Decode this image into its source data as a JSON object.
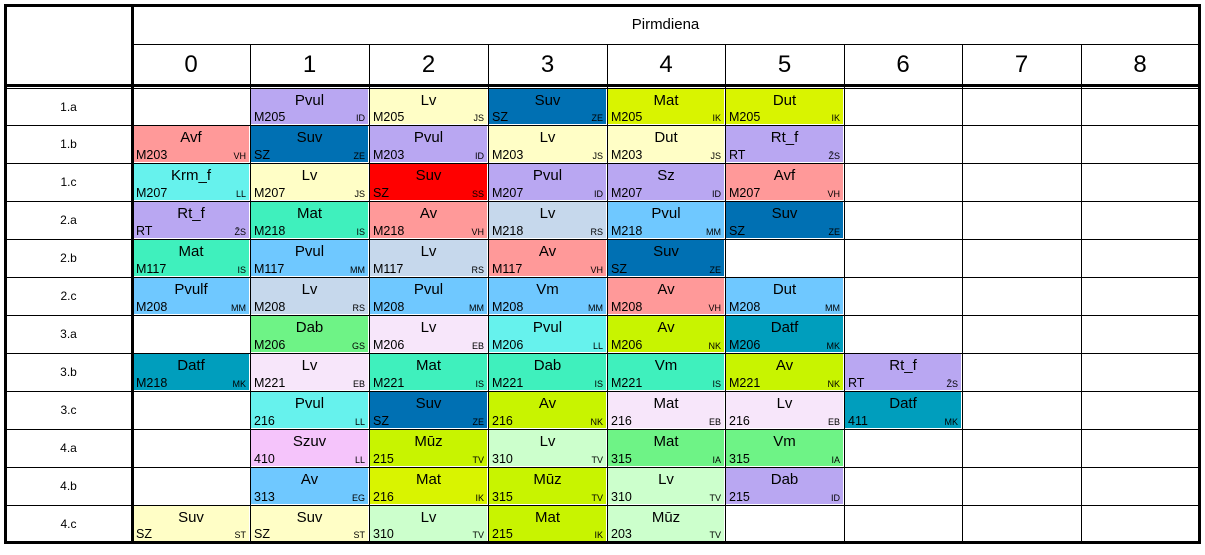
{
  "day": "Pirmdiena",
  "periods": [
    "0",
    "1",
    "2",
    "3",
    "4",
    "5",
    "6",
    "7",
    "8"
  ],
  "classes": [
    "1.a",
    "1.b",
    "1.c",
    "2.a",
    "2.b",
    "2.c",
    "3.a",
    "3.b",
    "3.c",
    "4.a",
    "4.b",
    "4.c"
  ],
  "colors": {
    "Pvul": "#b9a7f2",
    "Lv": "#fffec6",
    "Suv": "#0070b3",
    "Mat": "#d9f400",
    "Dut": "#d9f400",
    "Avf": "#ff9999",
    "Krm_f": "#66f2ed",
    "Sz": "#b9a7f2",
    "Rt_f": "#b9a7f2",
    "Mat2": "#3ff0bd",
    "Av": "#ff9999",
    "Lv2": "#c6d8ec",
    "Pvulf": "#6fc8ff",
    "Vm": "#6fc8ff",
    "Dab": "#6ef386",
    "Lv3": "#f7e6fa",
    "Datf": "#009ebd",
    "Szuv": "#f5c4fb",
    "Muz": "#c8f400",
    "Lv4": "#ccffcc",
    "Red": "#ff0000"
  },
  "lessons": [
    {
      "row": 0,
      "col": 1,
      "room": "M205",
      "subject": "Pvul",
      "teacher": "ID",
      "color": "#b9a7f2"
    },
    {
      "row": 0,
      "col": 2,
      "room": "M205",
      "subject": "Lv",
      "teacher": "JS",
      "color": "#fffec6"
    },
    {
      "row": 0,
      "col": 3,
      "room": "SZ",
      "subject": "Suv",
      "teacher": "ZE",
      "color": "#0070b3"
    },
    {
      "row": 0,
      "col": 4,
      "room": "M205",
      "subject": "Mat",
      "teacher": "IK",
      "color": "#d9f400"
    },
    {
      "row": 0,
      "col": 5,
      "room": "M205",
      "subject": "Dut",
      "teacher": "IK",
      "color": "#d9f400"
    },
    {
      "row": 1,
      "col": 0,
      "room": "M203",
      "subject": "Avf",
      "teacher": "VH",
      "color": "#ff9999"
    },
    {
      "row": 1,
      "col": 1,
      "room": "SZ",
      "subject": "Suv",
      "teacher": "ZE",
      "color": "#0070b3"
    },
    {
      "row": 1,
      "col": 2,
      "room": "M203",
      "subject": "Pvul",
      "teacher": "ID",
      "color": "#b9a7f2"
    },
    {
      "row": 1,
      "col": 3,
      "room": "M203",
      "subject": "Lv",
      "teacher": "JS",
      "color": "#fffec6"
    },
    {
      "row": 1,
      "col": 4,
      "room": "M203",
      "subject": "Dut",
      "teacher": "JS",
      "color": "#fffec6"
    },
    {
      "row": 1,
      "col": 5,
      "room": "RT",
      "subject": "Rt_f",
      "teacher": "ŽS",
      "color": "#b9a7f2"
    },
    {
      "row": 2,
      "col": 0,
      "room": "M207",
      "subject": "Krm_f",
      "teacher": "LL",
      "color": "#66f2ed"
    },
    {
      "row": 2,
      "col": 1,
      "room": "M207",
      "subject": "Lv",
      "teacher": "JS",
      "color": "#fffec6"
    },
    {
      "row": 2,
      "col": 2,
      "room": "SZ",
      "subject": "Suv",
      "teacher": "SS",
      "color": "#ff0000"
    },
    {
      "row": 2,
      "col": 3,
      "room": "M207",
      "subject": "Pvul",
      "teacher": "ID",
      "color": "#b9a7f2"
    },
    {
      "row": 2,
      "col": 4,
      "room": "M207",
      "subject": "Sz",
      "teacher": "ID",
      "color": "#b9a7f2"
    },
    {
      "row": 2,
      "col": 5,
      "room": "M207",
      "subject": "Avf",
      "teacher": "VH",
      "color": "#ff9999"
    },
    {
      "row": 3,
      "col": 0,
      "room": "RT",
      "subject": "Rt_f",
      "teacher": "ŽS",
      "color": "#b9a7f2"
    },
    {
      "row": 3,
      "col": 1,
      "room": "M218",
      "subject": "Mat",
      "teacher": "IS",
      "color": "#3ff0bd"
    },
    {
      "row": 3,
      "col": 2,
      "room": "M218",
      "subject": "Av",
      "teacher": "VH",
      "color": "#ff9999"
    },
    {
      "row": 3,
      "col": 3,
      "room": "M218",
      "subject": "Lv",
      "teacher": "RS",
      "color": "#c6d8ec"
    },
    {
      "row": 3,
      "col": 4,
      "room": "M218",
      "subject": "Pvul",
      "teacher": "MM",
      "color": "#6fc8ff"
    },
    {
      "row": 3,
      "col": 5,
      "room": "SZ",
      "subject": "Suv",
      "teacher": "ZE",
      "color": "#0070b3"
    },
    {
      "row": 4,
      "col": 0,
      "room": "M117",
      "subject": "Mat",
      "teacher": "IS",
      "color": "#3ff0bd"
    },
    {
      "row": 4,
      "col": 1,
      "room": "M117",
      "subject": "Pvul",
      "teacher": "MM",
      "color": "#6fc8ff"
    },
    {
      "row": 4,
      "col": 2,
      "room": "M117",
      "subject": "Lv",
      "teacher": "RS",
      "color": "#c6d8ec"
    },
    {
      "row": 4,
      "col": 3,
      "room": "M117",
      "subject": "Av",
      "teacher": "VH",
      "color": "#ff9999"
    },
    {
      "row": 4,
      "col": 4,
      "room": "SZ",
      "subject": "Suv",
      "teacher": "ZE",
      "color": "#0070b3"
    },
    {
      "row": 5,
      "col": 0,
      "room": "M208",
      "subject": "Pvulf",
      "teacher": "MM",
      "color": "#6fc8ff"
    },
    {
      "row": 5,
      "col": 1,
      "room": "M208",
      "subject": "Lv",
      "teacher": "RS",
      "color": "#c6d8ec"
    },
    {
      "row": 5,
      "col": 2,
      "room": "M208",
      "subject": "Pvul",
      "teacher": "MM",
      "color": "#6fc8ff"
    },
    {
      "row": 5,
      "col": 3,
      "room": "M208",
      "subject": "Vm",
      "teacher": "MM",
      "color": "#6fc8ff"
    },
    {
      "row": 5,
      "col": 4,
      "room": "M208",
      "subject": "Av",
      "teacher": "VH",
      "color": "#ff9999"
    },
    {
      "row": 5,
      "col": 5,
      "room": "M208",
      "subject": "Dut",
      "teacher": "MM",
      "color": "#6fc8ff"
    },
    {
      "row": 6,
      "col": 1,
      "room": "M206",
      "subject": "Dab",
      "teacher": "GS",
      "color": "#6ef386"
    },
    {
      "row": 6,
      "col": 2,
      "room": "M206",
      "subject": "Lv",
      "teacher": "EB",
      "color": "#f7e6fa"
    },
    {
      "row": 6,
      "col": 3,
      "room": "M206",
      "subject": "Pvul",
      "teacher": "LL",
      "color": "#66f2ed"
    },
    {
      "row": 6,
      "col": 4,
      "room": "M206",
      "subject": "Av",
      "teacher": "NK",
      "color": "#c8f400"
    },
    {
      "row": 6,
      "col": 5,
      "room": "M206",
      "subject": "Datf",
      "teacher": "MK",
      "color": "#009ebd"
    },
    {
      "row": 7,
      "col": 0,
      "room": "M218",
      "subject": "Datf",
      "teacher": "MK",
      "color": "#009ebd"
    },
    {
      "row": 7,
      "col": 1,
      "room": "M221",
      "subject": "Lv",
      "teacher": "EB",
      "color": "#f7e6fa"
    },
    {
      "row": 7,
      "col": 2,
      "room": "M221",
      "subject": "Mat",
      "teacher": "IS",
      "color": "#3ff0bd"
    },
    {
      "row": 7,
      "col": 3,
      "room": "M221",
      "subject": "Dab",
      "teacher": "IS",
      "color": "#3ff0bd"
    },
    {
      "row": 7,
      "col": 4,
      "room": "M221",
      "subject": "Vm",
      "teacher": "IS",
      "color": "#3ff0bd"
    },
    {
      "row": 7,
      "col": 5,
      "room": "M221",
      "subject": "Av",
      "teacher": "NK",
      "color": "#c8f400"
    },
    {
      "row": 7,
      "col": 6,
      "room": "RT",
      "subject": "Rt_f",
      "teacher": "ŽS",
      "color": "#b9a7f2"
    },
    {
      "row": 8,
      "col": 1,
      "room": "216",
      "subject": "Pvul",
      "teacher": "LL",
      "color": "#66f2ed"
    },
    {
      "row": 8,
      "col": 2,
      "room": "SZ",
      "subject": "Suv",
      "teacher": "ZE",
      "color": "#0070b3"
    },
    {
      "row": 8,
      "col": 3,
      "room": "216",
      "subject": "Av",
      "teacher": "NK",
      "color": "#c8f400"
    },
    {
      "row": 8,
      "col": 4,
      "room": "216",
      "subject": "Mat",
      "teacher": "EB",
      "color": "#f7e6fa"
    },
    {
      "row": 8,
      "col": 5,
      "room": "216",
      "subject": "Lv",
      "teacher": "EB",
      "color": "#f7e6fa"
    },
    {
      "row": 8,
      "col": 6,
      "room": "411",
      "subject": "Datf",
      "teacher": "MK",
      "color": "#009ebd"
    },
    {
      "row": 9,
      "col": 1,
      "room": "410",
      "subject": "Szuv",
      "teacher": "LL",
      "color": "#f5c4fb"
    },
    {
      "row": 9,
      "col": 2,
      "room": "215",
      "subject": "Mūz",
      "teacher": "TV",
      "color": "#c8f400"
    },
    {
      "row": 9,
      "col": 3,
      "room": "310",
      "subject": "Lv",
      "teacher": "TV",
      "color": "#ccffcc"
    },
    {
      "row": 9,
      "col": 4,
      "room": "315",
      "subject": "Mat",
      "teacher": "IA",
      "color": "#6ef386"
    },
    {
      "row": 9,
      "col": 5,
      "room": "315",
      "subject": "Vm",
      "teacher": "IA",
      "color": "#6ef386"
    },
    {
      "row": 10,
      "col": 1,
      "room": "313",
      "subject": "Av",
      "teacher": "EG",
      "color": "#6fc8ff"
    },
    {
      "row": 10,
      "col": 2,
      "room": "216",
      "subject": "Mat",
      "teacher": "IK",
      "color": "#d9f400"
    },
    {
      "row": 10,
      "col": 3,
      "room": "315",
      "subject": "Mūz",
      "teacher": "TV",
      "color": "#c8f400"
    },
    {
      "row": 10,
      "col": 4,
      "room": "310",
      "subject": "Lv",
      "teacher": "TV",
      "color": "#ccffcc"
    },
    {
      "row": 10,
      "col": 5,
      "room": "215",
      "subject": "Dab",
      "teacher": "ID",
      "color": "#b9a7f2"
    },
    {
      "row": 11,
      "col": 0,
      "room": "SZ",
      "subject": "Suv",
      "teacher": "ST",
      "color": "#fffec6"
    },
    {
      "row": 11,
      "col": 1,
      "room": "SZ",
      "subject": "Suv",
      "teacher": "ST",
      "color": "#fffec6"
    },
    {
      "row": 11,
      "col": 2,
      "room": "310",
      "subject": "Lv",
      "teacher": "TV",
      "color": "#ccffcc"
    },
    {
      "row": 11,
      "col": 3,
      "room": "215",
      "subject": "Mat",
      "teacher": "IK",
      "color": "#c8f400"
    },
    {
      "row": 11,
      "col": 4,
      "room": "203",
      "subject": "Mūz",
      "teacher": "TV",
      "color": "#ccffcc"
    }
  ]
}
